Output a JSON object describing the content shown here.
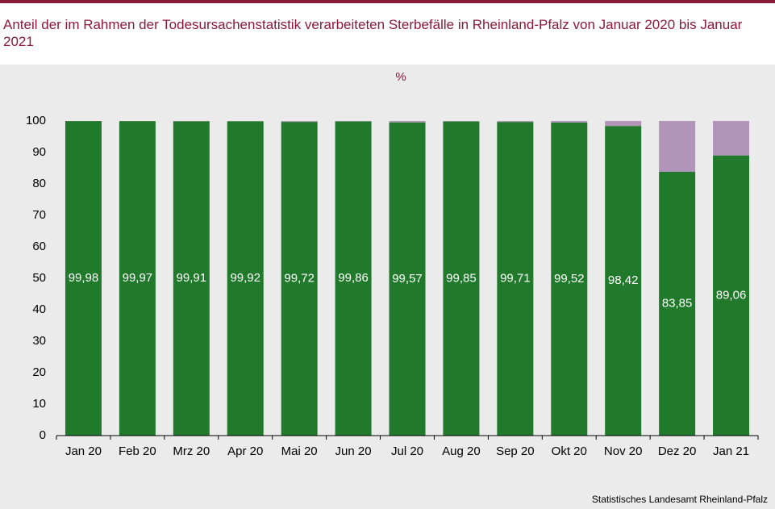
{
  "chart_data": {
    "type": "stacked_bar",
    "title": "Anteil der im Rahmen der Todesursachenstatistik verarbeiteten Sterbefälle in Rheinland-Pfalz von Januar 2020 bis Januar 2021",
    "y_label": "%",
    "source": "Statistisches Landesamt Rheinland-Pfalz",
    "categories": [
      "Jan 20",
      "Feb 20",
      "Mrz 20",
      "Apr 20",
      "Mai 20",
      "Jun 20",
      "Jul 20",
      "Aug 20",
      "Sep 20",
      "Okt 20",
      "Nov 20",
      "Dez 20",
      "Jan 21"
    ],
    "series": [
      {
        "color": "#217a2b",
        "values": [
          99.98,
          99.97,
          99.91,
          99.92,
          99.72,
          99.86,
          99.57,
          99.85,
          99.71,
          99.52,
          98.42,
          83.85,
          89.06
        ],
        "value_labels": [
          "99,98",
          "99,97",
          "99,91",
          "99,92",
          "99,72",
          "99,86",
          "99,57",
          "99,85",
          "99,71",
          "99,52",
          "98,42",
          "83,85",
          "89,06"
        ]
      },
      {
        "color": "#b095b8",
        "values": [
          0.02,
          0.03,
          0.09,
          0.08,
          0.28,
          0.14,
          0.43,
          0.15,
          0.29,
          0.48,
          1.58,
          16.15,
          10.94
        ]
      }
    ],
    "ylim": [
      0,
      100
    ],
    "yticks": [
      0,
      10,
      20,
      30,
      40,
      50,
      60,
      70,
      80,
      90,
      100
    ],
    "grid": false
  }
}
